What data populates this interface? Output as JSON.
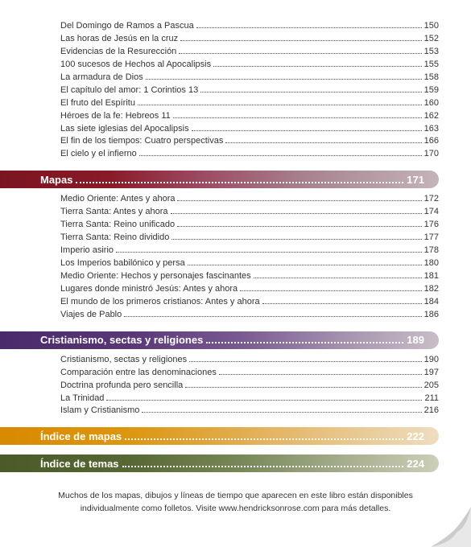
{
  "first_entries": [
    {
      "label": "Del Domingo de Ramos a Pascua",
      "page": "150"
    },
    {
      "label": "Las horas de Jesús en la cruz",
      "page": "152"
    },
    {
      "label": "Evidencias de la Resurección",
      "page": "153"
    },
    {
      "label": "100 sucesos de Hechos al Apocalipsis",
      "page": "155"
    },
    {
      "label": "La armadura de Dios",
      "page": "158"
    },
    {
      "label": "El capítulo del amor: 1 Corintios 13",
      "page": "159"
    },
    {
      "label": "El fruto del Espíritu",
      "page": "160"
    },
    {
      "label": "Héroes de la fe: Hebreos 11",
      "page": "162"
    },
    {
      "label": "Las siete iglesias del Apocalipsis",
      "page": "163"
    },
    {
      "label": "El fin de los tiempos: Cuatro perspectivas",
      "page": "166"
    },
    {
      "label": "El cielo y el infierno",
      "page": "170"
    }
  ],
  "sections": [
    {
      "title": "Mapas",
      "page": "171",
      "gradient": "linear-gradient(90deg, #7a1520 0%, #8a1a28 25%, #9c4860 45%, #a88290 70%, #c4b4b8 100%)",
      "entries": [
        {
          "label": "Medio Oriente: Antes y ahora",
          "page": "172"
        },
        {
          "label": "Tierra Santa: Antes y ahora",
          "page": "174"
        },
        {
          "label": "Tierra Santa: Reino unificado",
          "page": "176"
        },
        {
          "label": "Tierra Santa: Reino dividido",
          "page": "177"
        },
        {
          "label": "Imperio asirio",
          "page": "178"
        },
        {
          "label": "Los Imperios babilónico y persa",
          "page": "180"
        },
        {
          "label": "Medio Oriente: Hechos y personajes fascinantes",
          "page": "181"
        },
        {
          "label": "Lugares donde ministró Jesús: Antes y ahora",
          "page": "182"
        },
        {
          "label": "El mundo de los primeros cristianos: Antes y ahora",
          "page": "184"
        },
        {
          "label": "Viajes de Pablo",
          "page": "186"
        }
      ]
    },
    {
      "title": "Cristianismo, sectas y religiones",
      "page": "189",
      "gradient": "linear-gradient(90deg, #4a2a6a 0%, #5a3878 30%, #7a5a92 55%, #a896b0 80%, #c8bec8 100%)",
      "entries": [
        {
          "label": "Cristianismo, sectas y religiones",
          "page": "190"
        },
        {
          "label": "Comparación entre las denominaciones",
          "page": "197"
        },
        {
          "label": "Doctrina profunda pero sencilla",
          "page": "205"
        },
        {
          "label": "La Trinidad",
          "page": "211"
        },
        {
          "label": "Islam y Cristianismo",
          "page": "216"
        }
      ]
    },
    {
      "title": "Índice de mapas",
      "page": "222",
      "gradient": "linear-gradient(90deg, #d88a00 0%, #dd9610 30%, #e2ad50 55%, #e8c890 80%, #eeddc0 100%)",
      "entries": []
    },
    {
      "title": "Índice de temas",
      "page": "224",
      "gradient": "linear-gradient(90deg, #4a5a28 0%, #586834 30%, #788858 55%, #a8b090 80%, #cccfb8 100%)",
      "entries": []
    }
  ],
  "footnote_line1": "Muchos de los mapas, dibujos y líneas de tiempo que aparecen en este libro están disponibles",
  "footnote_line2": "individualmente como folletos. Visite www.hendricksonrose.com para más detalles."
}
